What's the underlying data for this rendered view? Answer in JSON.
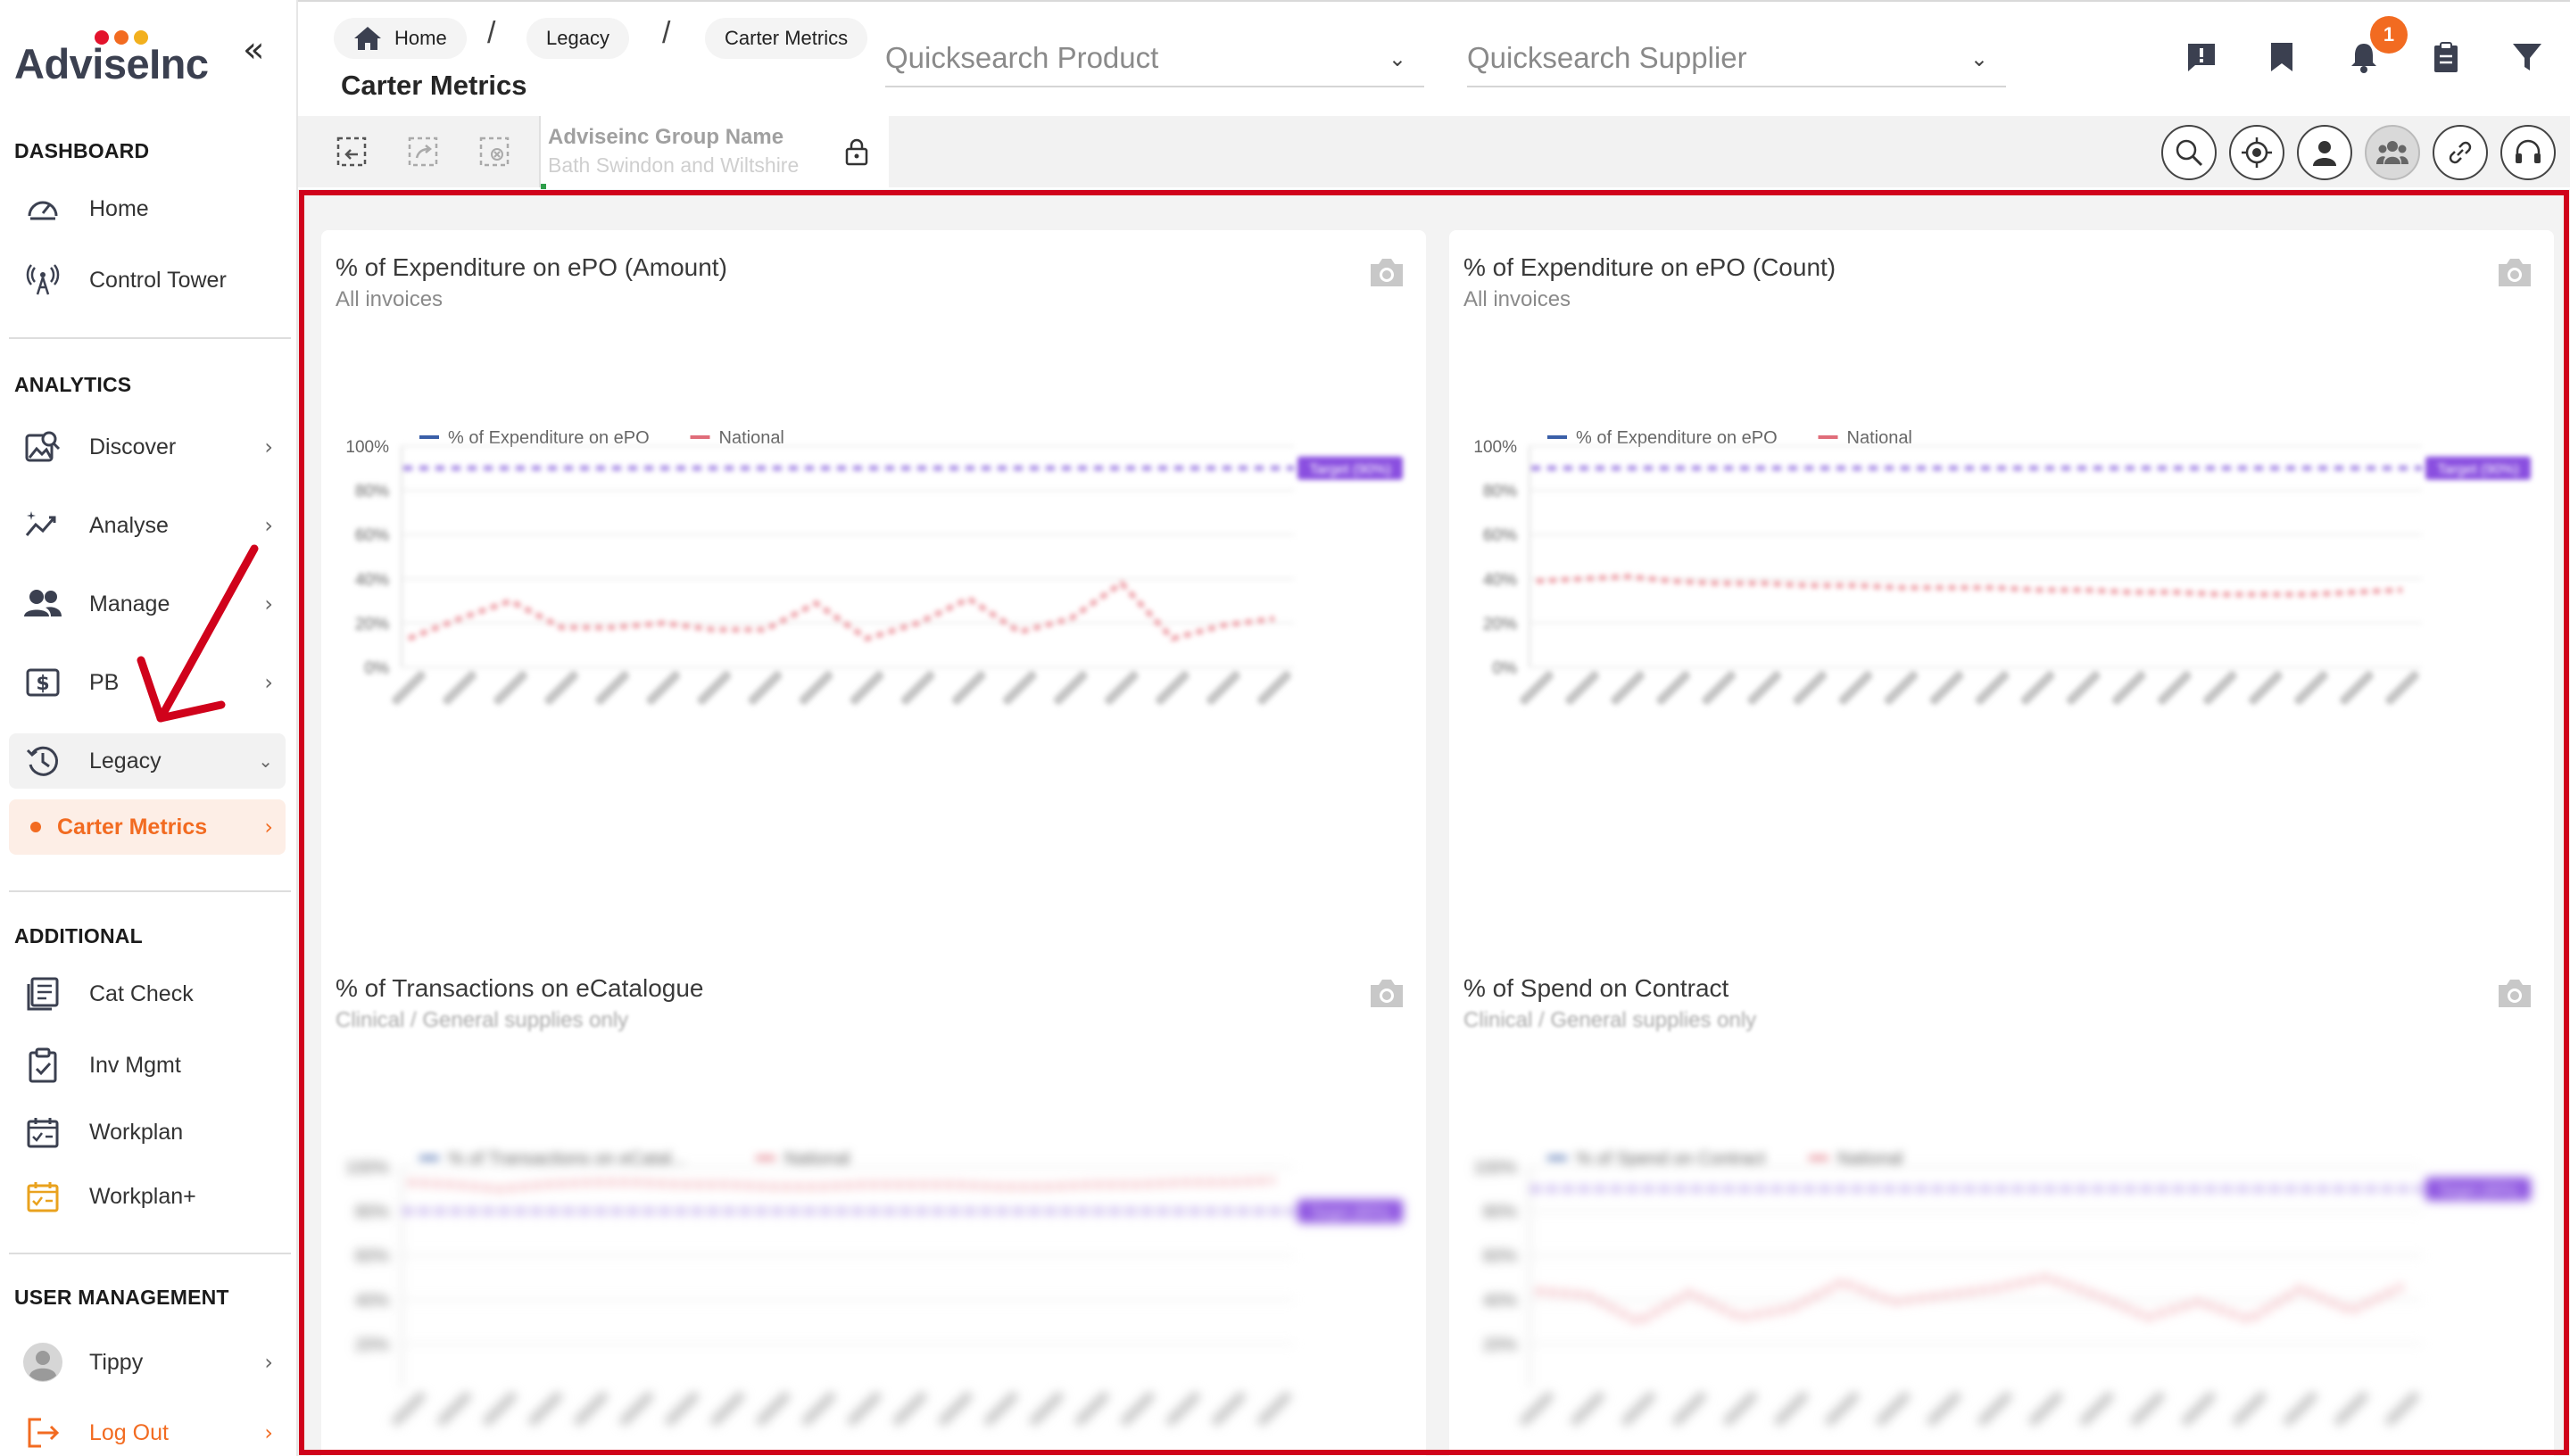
{
  "app": {
    "logo_text": "AdviseInc",
    "logo_dots": [
      "#e3132c",
      "#f26b21",
      "#f2b01e"
    ],
    "accent_color": "#f26b21",
    "highlight_color": "#d0021b"
  },
  "sidebar": {
    "collapse_icon": "double-chevron-left-icon",
    "sections": {
      "dashboard": "DASHBOARD",
      "analytics": "ANALYTICS",
      "additional": "ADDITIONAL",
      "user_management": "USER MANAGEMENT"
    },
    "items": {
      "home": "Home",
      "control_tower": "Control Tower",
      "discover": "Discover",
      "analyse": "Analyse",
      "manage": "Manage",
      "pb": "PB",
      "legacy": "Legacy",
      "carter_metrics": "Carter Metrics",
      "cat_check": "Cat Check",
      "inv_mgmt": "Inv Mgmt",
      "workplan": "Workplan",
      "workplan_plus": "Workplan+",
      "tippy": "Tippy",
      "log_out": "Log Out"
    }
  },
  "header": {
    "breadcrumbs": [
      "Home",
      "Legacy",
      "Carter Metrics"
    ],
    "breadcrumb_separator": "/",
    "title": "Carter Metrics",
    "quicksearch_product": "Quicksearch Product",
    "quicksearch_supplier": "Quicksearch Supplier",
    "notification_count": "1"
  },
  "toolbar": {
    "group_label": "Adviseinc Group Name",
    "group_value": "Bath Swindon and Wiltshire"
  },
  "cards": [
    {
      "title": "% of Expenditure on ePO (Amount)",
      "subtitle": "All invoices",
      "legend": [
        "% of Expenditure on ePO",
        "National"
      ],
      "y_ticks": [
        "100%",
        "80%",
        "60%",
        "40%",
        "20%",
        "0%"
      ],
      "target_label": "Target (90%)"
    },
    {
      "title": "% of Expenditure on ePO (Count)",
      "subtitle": "All invoices",
      "legend": [
        "% of Expenditure on ePO",
        "National"
      ],
      "y_ticks": [
        "100%",
        "80%",
        "60%",
        "40%",
        "20%",
        "0%"
      ],
      "target_label": "Target (90%)"
    },
    {
      "title": "% of Transactions on eCatalogue",
      "subtitle": "Clinical / General supplies only",
      "legend": [
        "% of Transactions on eCatal...",
        "National"
      ],
      "y_ticks": [
        "100%",
        "80%",
        "60%",
        "40%",
        "20%"
      ],
      "target_label": "Target (80%)"
    },
    {
      "title": "% of Spend on Contract",
      "subtitle": "Clinical / General supplies only",
      "legend": [
        "% of Spend on Contract",
        "National"
      ],
      "y_ticks": [
        "100%",
        "80%",
        "60%",
        "40%",
        "20%"
      ],
      "target_label": "Target (90%)"
    }
  ],
  "chart_data": [
    {
      "type": "line",
      "title": "% of Expenditure on ePO (Amount)",
      "ylim": [
        0,
        100
      ],
      "target": 90,
      "series": [
        {
          "name": "National",
          "values": [
            13,
            22,
            30,
            18,
            18,
            20,
            17,
            17,
            29,
            13,
            20,
            31,
            16,
            22,
            38,
            13,
            19,
            22
          ]
        }
      ]
    },
    {
      "type": "line",
      "title": "% of Expenditure on ePO (Count)",
      "ylim": [
        0,
        100
      ],
      "target": 90,
      "series": [
        {
          "name": "National",
          "values": [
            39,
            40,
            41,
            39,
            38,
            38,
            37,
            37,
            36,
            36,
            36,
            35,
            35,
            34,
            34,
            33,
            33,
            33,
            34,
            35
          ]
        }
      ]
    },
    {
      "type": "line",
      "title": "% of Transactions on eCatalogue",
      "ylim": [
        0,
        100
      ],
      "target": 80,
      "series": [
        {
          "name": "National",
          "values": [
            93,
            92,
            90,
            92,
            93,
            93,
            92,
            92,
            91,
            91,
            92,
            92,
            92,
            91,
            91,
            92,
            92,
            93,
            93,
            94
          ]
        }
      ]
    },
    {
      "type": "line",
      "title": "% of Spend on Contract",
      "ylim": [
        0,
        100
      ],
      "target": 90,
      "series": [
        {
          "name": "National",
          "values": [
            44,
            42,
            30,
            43,
            32,
            36,
            48,
            39,
            42,
            45,
            50,
            42,
            32,
            39,
            31,
            45,
            35,
            46
          ]
        }
      ]
    }
  ]
}
